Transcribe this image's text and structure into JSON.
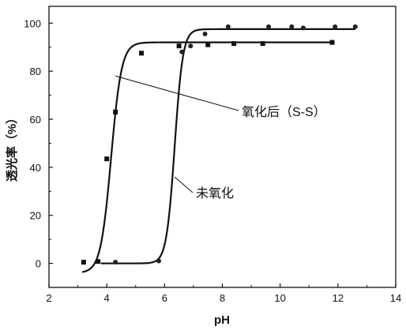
{
  "chart_data": {
    "type": "scatter",
    "xlabel": "pH",
    "ylabel": "透光率（%）",
    "xlim": [
      2,
      14
    ],
    "ylim": [
      -10,
      107
    ],
    "xticks": [
      "2",
      "4",
      "6",
      "8",
      "10",
      "12",
      "14"
    ],
    "yticks": [
      "0",
      "20",
      "40",
      "60",
      "80",
      "100"
    ],
    "grid": false,
    "series": [
      {
        "name": "氧化后（S-S）",
        "marker": "square",
        "points": [
          [
            3.2,
            0.5
          ],
          [
            3.7,
            0.8
          ],
          [
            4.0,
            43.5
          ],
          [
            4.3,
            63
          ],
          [
            5.2,
            87.5
          ],
          [
            6.5,
            90.5
          ],
          [
            7.5,
            91
          ],
          [
            8.4,
            91.5
          ],
          [
            9.4,
            91.5
          ],
          [
            11.8,
            92
          ]
        ],
        "curve": {
          "y0": -4,
          "y1": 92,
          "x50": 4.15,
          "k": 5.5
        }
      },
      {
        "name": "未氧化",
        "marker": "circle",
        "points": [
          [
            4.3,
            0.5
          ],
          [
            5.8,
            1
          ],
          [
            6.6,
            88
          ],
          [
            6.9,
            90.5
          ],
          [
            7.4,
            95.5
          ],
          [
            8.2,
            98.5
          ],
          [
            9.6,
            98.5
          ],
          [
            10.4,
            98.5
          ],
          [
            10.8,
            98
          ],
          [
            11.9,
            98.5
          ],
          [
            12.6,
            98.5
          ]
        ],
        "curve": {
          "y0": 0,
          "y1": 97.5,
          "x50": 6.35,
          "k": 7
        }
      }
    ],
    "annotations": [
      {
        "text": "氧化后（S-S）",
        "target_series": 0
      },
      {
        "text": "未氧化",
        "target_series": 1
      }
    ]
  }
}
